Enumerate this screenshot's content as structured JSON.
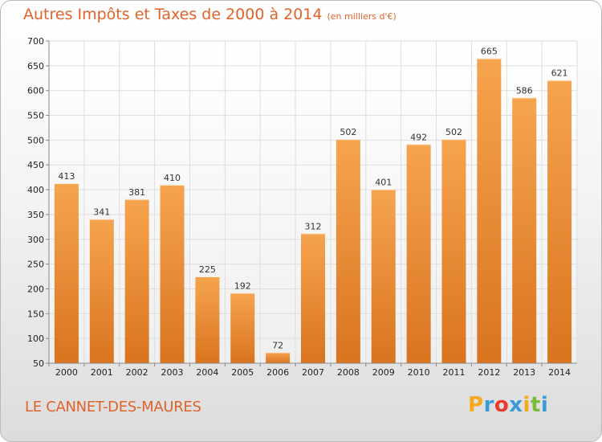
{
  "header": {
    "title": "Autres Impôts et Taxes de 2000 à 2014",
    "subtitle": "(en milliers d'€)"
  },
  "footer": {
    "location": "LE CANNET-DES-MAURES",
    "brand": "Proxiti",
    "brand_colors": [
      "#f7a81b",
      "#3a9bd9",
      "#e8392c",
      "#3a9bd9",
      "#f7a81b",
      "#7dbb3a",
      "#3a9bd9"
    ]
  },
  "colors": {
    "bar_top": "#f6a44f",
    "bar_bottom": "#d9741f",
    "accent": "#e0632a",
    "grid": "#dedede",
    "axis_text": "#222222"
  },
  "chart_data": {
    "type": "bar",
    "title": "Autres Impôts et Taxes de 2000 à 2014",
    "subtitle": "(en milliers d'€)",
    "xlabel": "",
    "ylabel": "",
    "categories": [
      "2000",
      "2001",
      "2002",
      "2003",
      "2004",
      "2005",
      "2006",
      "2007",
      "2008",
      "2009",
      "2010",
      "2011",
      "2012",
      "2013",
      "2014"
    ],
    "values": [
      413,
      341,
      381,
      410,
      225,
      192,
      72,
      312,
      502,
      401,
      492,
      502,
      665,
      586,
      621
    ],
    "data_labels": [
      "413",
      "341",
      "381",
      "410",
      "225",
      "192",
      "72",
      "312",
      "502",
      "401",
      "492",
      "502",
      "665",
      "586",
      "621"
    ],
    "ylim": [
      50,
      700
    ],
    "yticks": [
      50,
      100,
      150,
      200,
      250,
      300,
      350,
      400,
      450,
      500,
      550,
      600,
      650,
      700
    ],
    "ytick_labels": [
      "50",
      "100",
      "150",
      "200",
      "250",
      "300",
      "350",
      "400",
      "450",
      "500",
      "550",
      "600",
      "650",
      "700"
    ],
    "grid": true,
    "legend": "none"
  }
}
